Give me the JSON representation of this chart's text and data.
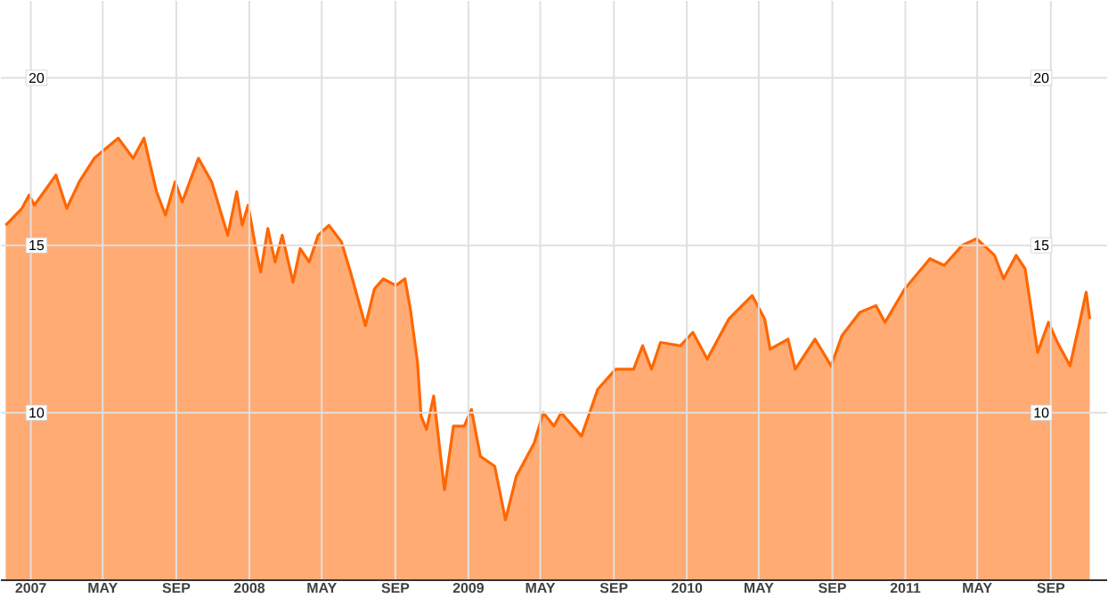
{
  "chart_data": {
    "type": "area",
    "x": [
      "2006-11-20",
      "2006-12-17",
      "2006-12-29",
      "2007-01-07",
      "2007-02-12",
      "2007-03-02",
      "2007-03-23",
      "2007-04-17",
      "2007-05-27",
      "2007-06-21",
      "2007-07-09",
      "2007-07-30",
      "2007-08-14",
      "2007-08-30",
      "2007-09-11",
      "2007-10-08",
      "2007-10-30",
      "2007-11-26",
      "2007-12-11",
      "2007-12-20",
      "2007-12-30",
      "2008-01-14",
      "2008-01-20",
      "2008-02-01",
      "2008-02-13",
      "2008-02-25",
      "2008-03-14",
      "2008-03-26",
      "2008-04-10",
      "2008-04-25",
      "2008-05-13",
      "2008-06-03",
      "2008-06-18",
      "2008-07-13",
      "2008-07-28",
      "2008-08-12",
      "2008-09-02",
      "2008-09-17",
      "2008-09-26",
      "2008-10-08",
      "2008-10-14",
      "2008-10-23",
      "2008-11-04",
      "2008-11-22",
      "2008-12-07",
      "2008-12-25",
      "2009-01-06",
      "2009-01-21",
      "2009-02-14",
      "2009-03-04",
      "2009-03-22",
      "2009-04-21",
      "2009-05-06",
      "2009-05-24",
      "2009-06-05",
      "2009-07-09",
      "2009-08-05",
      "2009-09-04",
      "2009-10-04",
      "2009-10-19",
      "2009-11-03",
      "2009-11-18",
      "2009-12-21",
      "2010-01-11",
      "2010-02-04",
      "2010-03-12",
      "2010-04-20",
      "2010-05-11",
      "2010-05-20",
      "2010-06-19",
      "2010-07-01",
      "2010-08-03",
      "2010-08-30",
      "2010-09-17",
      "2010-10-17",
      "2010-11-13",
      "2010-11-28",
      "2010-12-31",
      "2011-02-11",
      "2011-03-07",
      "2011-04-06",
      "2011-04-30",
      "2011-05-30",
      "2011-06-14",
      "2011-07-05",
      "2011-07-20",
      "2011-08-10",
      "2011-08-28",
      "2011-09-12",
      "2011-10-03",
      "2011-10-18",
      "2011-10-30",
      "2011-11-05"
    ],
    "series": [
      {
        "color": "#ff6600",
        "values": [
          15.6,
          16.1,
          16.5,
          16.2,
          17.1,
          16.1,
          16.9,
          17.6,
          18.2,
          17.6,
          18.2,
          16.6,
          15.9,
          16.9,
          16.3,
          17.6,
          16.9,
          15.3,
          16.6,
          15.6,
          16.2,
          14.7,
          14.2,
          15.5,
          14.5,
          15.3,
          13.9,
          14.9,
          14.5,
          15.3,
          15.6,
          15.1,
          14.2,
          12.6,
          13.7,
          14.0,
          13.8,
          14.0,
          13.1,
          11.5,
          9.9,
          9.5,
          10.5,
          7.7,
          9.6,
          9.6,
          10.1,
          8.7,
          8.4,
          6.8,
          8.1,
          9.1,
          10.0,
          9.6,
          10.0,
          9.3,
          10.7,
          11.3,
          11.3,
          12.0,
          11.3,
          12.1,
          12.0,
          12.4,
          11.6,
          12.8,
          13.5,
          12.8,
          11.9,
          12.2,
          11.3,
          12.2,
          11.4,
          12.3,
          13.0,
          13.2,
          12.7,
          13.7,
          14.6,
          14.4,
          15.0,
          15.2,
          14.7,
          14.0,
          14.7,
          14.3,
          11.8,
          12.7,
          12.1,
          11.4,
          12.6,
          13.6,
          12.8
        ]
      }
    ],
    "xlim": [
      "2006-11-12",
      "2011-12-04"
    ],
    "xticks": [
      {
        "value": "2007-01-01",
        "label": "2007"
      },
      {
        "value": "2007-05-01",
        "label": "MAY"
      },
      {
        "value": "2007-09-01",
        "label": "SEP"
      },
      {
        "value": "2008-01-01",
        "label": "2008"
      },
      {
        "value": "2008-05-01",
        "label": "MAY"
      },
      {
        "value": "2008-09-01",
        "label": "SEP"
      },
      {
        "value": "2009-01-01",
        "label": "2009"
      },
      {
        "value": "2009-05-01",
        "label": "MAY"
      },
      {
        "value": "2009-09-01",
        "label": "SEP"
      },
      {
        "value": "2010-01-01",
        "label": "2010"
      },
      {
        "value": "2010-05-01",
        "label": "MAY"
      },
      {
        "value": "2010-09-01",
        "label": "SEP"
      },
      {
        "value": "2011-01-01",
        "label": "2011"
      },
      {
        "value": "2011-05-01",
        "label": "MAY"
      },
      {
        "value": "2011-09-01",
        "label": "SEP"
      }
    ],
    "ylim": [
      5,
      22.3
    ],
    "yticks": [
      10,
      15,
      20
    ],
    "y2lim": [
      5,
      22.3
    ],
    "y2ticks": [
      10,
      15,
      20
    ],
    "grid": true
  }
}
